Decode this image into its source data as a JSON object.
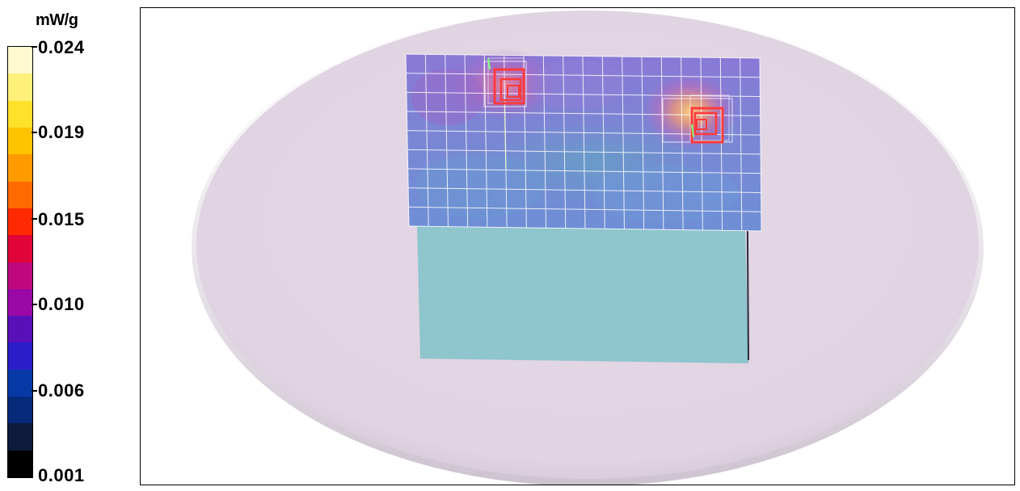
{
  "colorbar": {
    "unit": "mW/g",
    "labels": [
      "0.024",
      "0.019",
      "0.015",
      "0.010",
      "0.006",
      "0.001"
    ],
    "colors_bottom_to_top": [
      "#000000",
      "#0c1b3a",
      "#082a7a",
      "#0638a6",
      "#2a1ec8",
      "#5a10b8",
      "#9a08a6",
      "#c0087e",
      "#e00438",
      "#ff2a00",
      "#ff6a00",
      "#ff9a00",
      "#ffc400",
      "#ffe02a",
      "#fff07a",
      "#fffbd0"
    ]
  },
  "scene": {
    "phantom_color": "#e2d5e3",
    "device_color": "#8fc5cd",
    "grid_color": "#ffffff",
    "probe_color": "#ff3b3b"
  }
}
